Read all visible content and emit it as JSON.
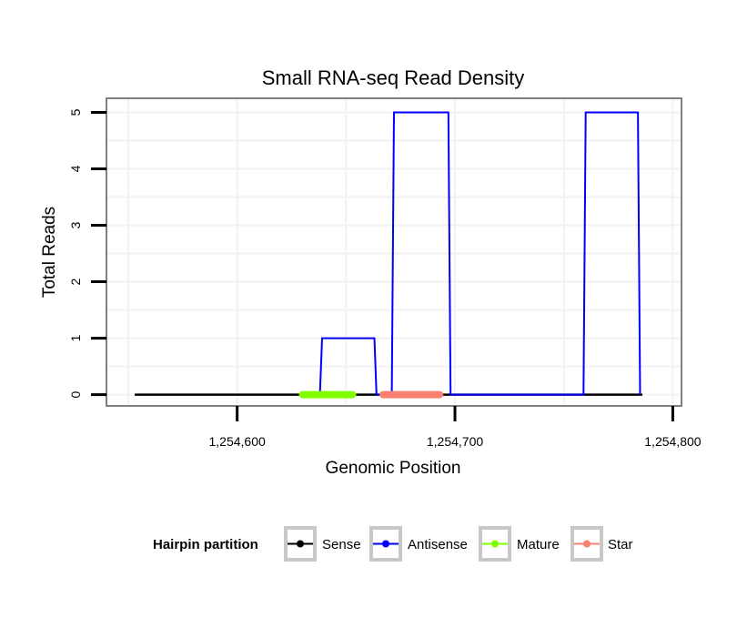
{
  "chart_data": {
    "type": "line",
    "title": "Small RNA-seq Read Density",
    "xlabel": "Genomic Position",
    "ylabel": "Total Reads",
    "xlim": [
      1254540,
      1254804
    ],
    "ylim": [
      -0.2,
      5.25
    ],
    "x_ticks": [
      1254600,
      1254700,
      1254800
    ],
    "x_tick_labels": [
      "1,254,600",
      "1,254,700",
      "1,254,800"
    ],
    "y_ticks": [
      0,
      1,
      2,
      3,
      4,
      5
    ],
    "y_tick_labels": [
      "0",
      "1",
      "2",
      "3",
      "4",
      "5"
    ],
    "grid": true,
    "legend": {
      "title": "Hairpin partition",
      "position": "bottom",
      "entries": [
        {
          "name": "Sense",
          "color": "#000000"
        },
        {
          "name": "Antisense",
          "color": "#0000ff"
        },
        {
          "name": "Mature",
          "color": "#7fff00"
        },
        {
          "name": "Star",
          "color": "#fa8072"
        }
      ]
    },
    "series": [
      {
        "name": "Sense",
        "color": "#000000",
        "x": [
          1254553,
          1254786
        ],
        "y": [
          0,
          0
        ]
      },
      {
        "name": "Antisense",
        "color": "#0000ff",
        "x": [
          1254638,
          1254639,
          1254663,
          1254664,
          1254671,
          1254672,
          1254697,
          1254698,
          1254759,
          1254760,
          1254784,
          1254785
        ],
        "y": [
          0,
          1,
          1,
          0,
          0,
          5,
          5,
          0,
          0,
          5,
          5,
          0
        ]
      },
      {
        "name": "Mature",
        "color": "#7fff00",
        "x": [
          1254630,
          1254653
        ],
        "y": [
          0,
          0
        ]
      },
      {
        "name": "Star",
        "color": "#fa8072",
        "x": [
          1254667,
          1254693
        ],
        "y": [
          0,
          0
        ]
      }
    ]
  }
}
